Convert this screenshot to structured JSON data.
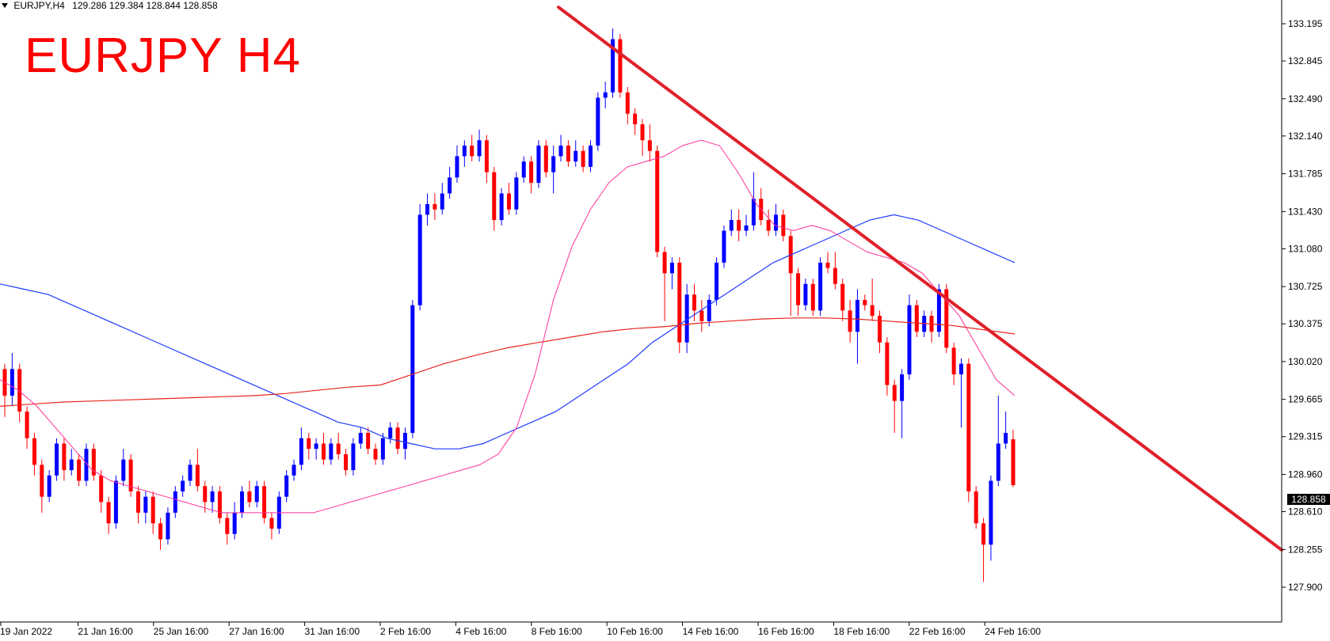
{
  "header": {
    "symbol": "EURJPY,H4",
    "values": "129.286 129.384 128.844 128.858"
  },
  "title": "EURJPY H4",
  "current_price": "128.858",
  "colors": {
    "bull": "#0000ff",
    "bear": "#ff0000",
    "trendline": "#e0202a",
    "ma_fast": "#ff3399",
    "ma_mid": "#1f3bff",
    "ma_slow": "#e8261d",
    "axis": "#000000"
  },
  "chart_data": {
    "type": "candlestick",
    "y_ticks": [
      "133.195",
      "132.845",
      "132.490",
      "132.140",
      "131.785",
      "131.430",
      "131.080",
      "130.725",
      "130.375",
      "130.020",
      "129.665",
      "129.315",
      "128.960",
      "128.610",
      "128.255",
      "127.900"
    ],
    "x_ticks": [
      "19 Jan 2022",
      "21 Jan 16:00",
      "25 Jan 16:00",
      "27 Jan 16:00",
      "31 Jan 16:00",
      "2 Feb 16:00",
      "4 Feb 16:00",
      "8 Feb 16:00",
      "10 Feb 16:00",
      "14 Feb 16:00",
      "16 Feb 16:00",
      "18 Feb 16:00",
      "22 Feb 16:00",
      "24 Feb 16:00"
    ],
    "ylim": [
      127.8,
      133.3
    ],
    "candles": [
      [
        129.95,
        129.7,
        130.0,
        129.5
      ],
      [
        129.7,
        129.95,
        130.1,
        129.6
      ],
      [
        129.95,
        129.55,
        130.0,
        129.45
      ],
      [
        129.55,
        129.3,
        129.6,
        129.2
      ],
      [
        129.3,
        129.05,
        129.35,
        128.95
      ],
      [
        129.05,
        128.75,
        129.1,
        128.6
      ],
      [
        128.75,
        128.95,
        129.0,
        128.7
      ],
      [
        128.95,
        129.25,
        129.3,
        128.9
      ],
      [
        129.25,
        129.0,
        129.3,
        128.9
      ],
      [
        129.0,
        129.1,
        129.2,
        128.95
      ],
      [
        129.1,
        128.9,
        129.15,
        128.85
      ],
      [
        128.9,
        129.2,
        129.25,
        128.85
      ],
      [
        129.2,
        128.95,
        129.25,
        128.9
      ],
      [
        128.95,
        128.7,
        129.0,
        128.6
      ],
      [
        128.7,
        128.5,
        128.75,
        128.4
      ],
      [
        128.5,
        128.9,
        128.95,
        128.45
      ],
      [
        128.9,
        129.1,
        129.2,
        128.85
      ],
      [
        129.1,
        128.8,
        129.15,
        128.75
      ],
      [
        128.8,
        128.6,
        128.85,
        128.5
      ],
      [
        128.6,
        128.75,
        128.8,
        128.5
      ],
      [
        128.75,
        128.5,
        128.8,
        128.4
      ],
      [
        128.5,
        128.35,
        128.55,
        128.25
      ],
      [
        128.35,
        128.6,
        128.65,
        128.3
      ],
      [
        128.6,
        128.8,
        128.85,
        128.55
      ],
      [
        128.8,
        128.9,
        128.95,
        128.75
      ],
      [
        128.9,
        129.05,
        129.1,
        128.85
      ],
      [
        129.05,
        128.85,
        129.2,
        128.8
      ],
      [
        128.85,
        128.7,
        128.9,
        128.6
      ],
      [
        128.7,
        128.8,
        128.85,
        128.6
      ],
      [
        128.8,
        128.55,
        128.85,
        128.5
      ],
      [
        128.55,
        128.4,
        128.6,
        128.3
      ],
      [
        128.4,
        128.6,
        128.7,
        128.35
      ],
      [
        128.6,
        128.8,
        128.85,
        128.55
      ],
      [
        128.8,
        128.7,
        128.9,
        128.65
      ],
      [
        128.7,
        128.85,
        128.9,
        128.65
      ],
      [
        128.85,
        128.55,
        128.9,
        128.5
      ],
      [
        128.55,
        128.45,
        128.6,
        128.35
      ],
      [
        128.45,
        128.75,
        128.8,
        128.4
      ],
      [
        128.75,
        128.95,
        129.0,
        128.7
      ],
      [
        128.95,
        129.05,
        129.1,
        128.9
      ],
      [
        129.05,
        129.3,
        129.4,
        129.0
      ],
      [
        129.3,
        129.2,
        129.35,
        129.1
      ],
      [
        129.2,
        129.25,
        129.3,
        129.1
      ],
      [
        129.25,
        129.1,
        129.35,
        129.05
      ],
      [
        129.1,
        129.25,
        129.3,
        129.05
      ],
      [
        129.25,
        129.15,
        129.35,
        129.1
      ],
      [
        129.15,
        129.0,
        129.2,
        128.95
      ],
      [
        129.0,
        129.25,
        129.3,
        128.95
      ],
      [
        129.25,
        129.35,
        129.4,
        129.2
      ],
      [
        129.35,
        129.2,
        129.4,
        129.15
      ],
      [
        129.2,
        129.1,
        129.25,
        129.05
      ],
      [
        129.1,
        129.3,
        129.35,
        129.05
      ],
      [
        129.3,
        129.4,
        129.45,
        129.25
      ],
      [
        129.4,
        129.2,
        129.45,
        129.15
      ],
      [
        129.2,
        129.35,
        129.4,
        129.1
      ],
      [
        129.35,
        130.55,
        130.6,
        129.3
      ],
      [
        130.55,
        131.4,
        131.5,
        130.5
      ],
      [
        131.4,
        131.5,
        131.6,
        131.3
      ],
      [
        131.5,
        131.45,
        131.6,
        131.35
      ],
      [
        131.45,
        131.6,
        131.7,
        131.4
      ],
      [
        131.6,
        131.75,
        131.85,
        131.55
      ],
      [
        131.75,
        131.95,
        132.05,
        131.7
      ],
      [
        131.95,
        132.05,
        132.1,
        131.85
      ],
      [
        132.05,
        131.95,
        132.15,
        131.9
      ],
      [
        131.95,
        132.1,
        132.2,
        131.9
      ],
      [
        132.1,
        131.8,
        132.15,
        131.7
      ],
      [
        131.8,
        131.35,
        131.85,
        131.25
      ],
      [
        131.35,
        131.6,
        131.65,
        131.3
      ],
      [
        131.6,
        131.45,
        131.7,
        131.4
      ],
      [
        131.45,
        131.75,
        131.8,
        131.4
      ],
      [
        131.75,
        131.9,
        131.95,
        131.7
      ],
      [
        131.9,
        131.7,
        131.95,
        131.6
      ],
      [
        131.7,
        132.05,
        132.1,
        131.65
      ],
      [
        132.05,
        131.8,
        132.1,
        131.75
      ],
      [
        131.8,
        131.95,
        132.05,
        131.6
      ],
      [
        131.95,
        132.05,
        132.15,
        131.9
      ],
      [
        132.05,
        131.9,
        132.1,
        131.85
      ],
      [
        131.9,
        132.0,
        132.1,
        131.85
      ],
      [
        132.0,
        131.85,
        132.05,
        131.8
      ],
      [
        131.85,
        132.05,
        132.1,
        131.8
      ],
      [
        132.05,
        132.5,
        132.55,
        132.0
      ],
      [
        132.5,
        132.55,
        132.65,
        132.4
      ],
      [
        132.55,
        133.05,
        133.15,
        132.5
      ],
      [
        133.05,
        132.55,
        133.1,
        132.5
      ],
      [
        132.55,
        132.35,
        132.6,
        132.25
      ],
      [
        132.35,
        132.25,
        132.4,
        132.15
      ],
      [
        132.25,
        132.1,
        132.3,
        131.95
      ],
      [
        132.1,
        132.0,
        132.25,
        131.9
      ],
      [
        132.0,
        131.05,
        132.05,
        131.0
      ],
      [
        131.05,
        130.85,
        131.1,
        130.4
      ],
      [
        130.85,
        130.95,
        131.0,
        130.7
      ],
      [
        130.95,
        130.2,
        131.0,
        130.1
      ],
      [
        130.2,
        130.65,
        130.75,
        130.1
      ],
      [
        130.65,
        130.5,
        130.75,
        130.4
      ],
      [
        130.5,
        130.4,
        130.6,
        130.3
      ],
      [
        130.4,
        130.6,
        130.65,
        130.35
      ],
      [
        130.6,
        130.95,
        131.0,
        130.55
      ],
      [
        130.95,
        131.25,
        131.3,
        130.9
      ],
      [
        131.25,
        131.35,
        131.45,
        131.2
      ],
      [
        131.35,
        131.25,
        131.45,
        131.15
      ],
      [
        131.25,
        131.3,
        131.4,
        131.2
      ],
      [
        131.3,
        131.55,
        131.8,
        131.25
      ],
      [
        131.55,
        131.35,
        131.65,
        131.3
      ],
      [
        131.35,
        131.25,
        131.45,
        131.2
      ],
      [
        131.25,
        131.4,
        131.5,
        131.2
      ],
      [
        131.4,
        131.2,
        131.45,
        131.15
      ],
      [
        131.2,
        130.85,
        131.25,
        130.45
      ],
      [
        130.85,
        130.55,
        130.9,
        130.45
      ],
      [
        130.55,
        130.75,
        130.8,
        130.5
      ],
      [
        130.75,
        130.5,
        130.8,
        130.45
      ],
      [
        130.5,
        130.95,
        131.0,
        130.45
      ],
      [
        130.95,
        130.9,
        131.05,
        130.85
      ],
      [
        130.9,
        130.75,
        131.05,
        130.7
      ],
      [
        130.75,
        130.5,
        130.8,
        130.4
      ],
      [
        130.5,
        130.3,
        130.6,
        130.2
      ],
      [
        130.3,
        130.6,
        130.7,
        130.0
      ],
      [
        130.6,
        130.55,
        130.65,
        130.5
      ],
      [
        130.55,
        130.45,
        130.8,
        130.4
      ],
      [
        130.45,
        130.2,
        130.5,
        130.1
      ],
      [
        130.2,
        129.8,
        130.25,
        129.7
      ],
      [
        129.8,
        129.65,
        129.85,
        129.35
      ],
      [
        129.65,
        129.9,
        129.95,
        129.3
      ],
      [
        129.9,
        130.55,
        130.65,
        129.85
      ],
      [
        130.55,
        130.3,
        130.6,
        130.25
      ],
      [
        130.3,
        130.45,
        130.5,
        130.25
      ],
      [
        130.45,
        130.3,
        130.5,
        130.2
      ],
      [
        130.3,
        130.7,
        130.75,
        130.25
      ],
      [
        130.7,
        130.15,
        130.75,
        130.1
      ],
      [
        130.15,
        129.9,
        130.2,
        129.8
      ],
      [
        129.9,
        130.0,
        130.05,
        129.4
      ],
      [
        130.0,
        128.8,
        130.05,
        128.7
      ],
      [
        128.8,
        128.5,
        128.85,
        128.45
      ],
      [
        128.5,
        128.3,
        128.55,
        127.95
      ],
      [
        128.3,
        128.9,
        128.95,
        128.15
      ],
      [
        128.9,
        129.25,
        129.7,
        128.85
      ],
      [
        129.25,
        129.35,
        129.55,
        129.2
      ],
      [
        129.29,
        128.86,
        129.38,
        128.84
      ]
    ],
    "ma_fast": [
      129.85,
      129.75,
      129.6,
      129.4,
      129.2,
      129.0,
      128.9,
      128.85,
      128.8,
      128.75,
      128.7,
      128.65,
      128.6,
      128.6,
      128.6,
      128.6,
      128.6,
      128.6,
      128.65,
      128.7,
      128.75,
      128.8,
      128.85,
      128.9,
      128.95,
      129.0,
      129.05,
      129.15,
      129.4,
      129.9,
      130.6,
      131.1,
      131.45,
      131.7,
      131.85,
      131.9,
      131.95,
      132.05,
      132.1,
      132.05,
      131.8,
      131.5,
      131.3,
      131.25,
      131.3,
      131.25,
      131.15,
      131.05,
      131.0,
      130.95,
      130.85,
      130.65,
      130.45,
      130.15,
      129.85,
      129.7
    ],
    "ma_mid": [
      130.75,
      130.7,
      130.65,
      130.55,
      130.45,
      130.35,
      130.25,
      130.15,
      130.05,
      129.95,
      129.85,
      129.75,
      129.65,
      129.55,
      129.45,
      129.4,
      129.3,
      129.25,
      129.2,
      129.2,
      129.25,
      129.35,
      129.45,
      129.55,
      129.7,
      129.85,
      130.0,
      130.2,
      130.35,
      130.5,
      130.65,
      130.8,
      130.95,
      131.05,
      131.15,
      131.25,
      131.35,
      131.4,
      131.35,
      131.25,
      131.15,
      131.05,
      130.95
    ],
    "ma_slow": [
      129.6,
      129.62,
      129.64,
      129.65,
      129.66,
      129.67,
      129.68,
      129.69,
      129.7,
      129.72,
      129.75,
      129.78,
      129.8,
      129.9,
      130.0,
      130.08,
      130.15,
      130.2,
      130.25,
      130.3,
      130.33,
      130.35,
      130.38,
      130.4,
      130.42,
      130.43,
      130.43,
      130.42,
      130.4,
      130.38,
      130.36,
      130.32,
      130.28
    ],
    "trendline": {
      "start": [
        "before 10 Feb 16:00",
        133.35
      ],
      "end": [
        "after 24 Feb 16:00",
        128.25
      ]
    }
  }
}
